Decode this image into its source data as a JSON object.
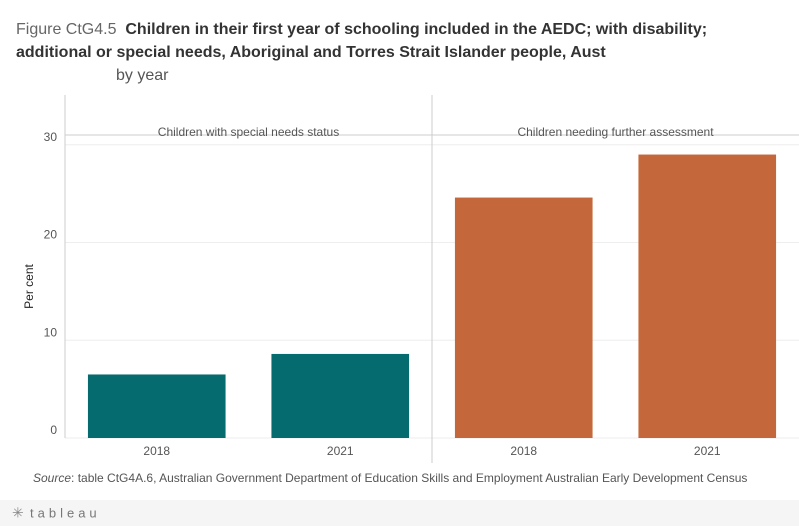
{
  "chart_data": {
    "type": "bar",
    "figure": "Figure CtG4.5",
    "title": "Children in their first year of schooling included in the AEDC; with disability; additional or special needs, Aboriginal and Torres Strait Islander people, Aust",
    "subtitle": "by year",
    "y_label": "Per cent",
    "ylim": [
      0,
      31
    ],
    "yticks": [
      0,
      10,
      20,
      30
    ],
    "grid": true,
    "panels": [
      {
        "name": "Children with special needs status",
        "color": "#056b6f",
        "categories": [
          "2018",
          "2021"
        ],
        "values": [
          6.5,
          8.6
        ]
      },
      {
        "name": "Children needing further assessment",
        "color": "#c4673b",
        "categories": [
          "2018",
          "2021"
        ],
        "values": [
          24.6,
          29.0
        ]
      }
    ],
    "source_label": "Source",
    "source": ": table CtG4A.6, Australian Government Department of Education Skills and Employment Australian Early Development Census",
    "footer": "tableau"
  }
}
